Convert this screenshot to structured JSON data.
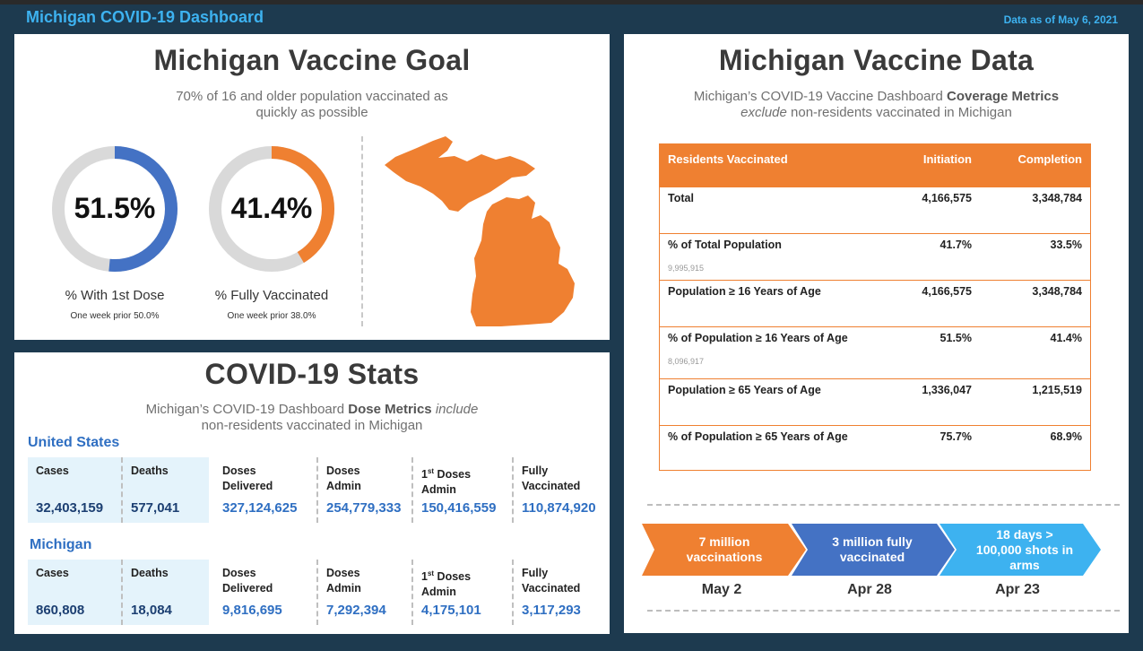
{
  "header": {
    "app_title": "Michigan COVID-19 Dashboard",
    "data_date": "Data as of May 6, 2021"
  },
  "goal": {
    "title": "Michigan Vaccine Goal",
    "subtitle_line1": "70% of 16 and older population vaccinated as",
    "subtitle_line2": "quickly as possible",
    "rings": [
      {
        "value": "51.5%",
        "fraction": 0.515,
        "color": "#4472c4",
        "label": "% With 1st Dose",
        "note": "One week prior 50.0%"
      },
      {
        "value": "41.4%",
        "fraction": 0.414,
        "color": "#ef8031",
        "label": "% Fully Vaccinated",
        "note": "One week prior 38.0%"
      }
    ],
    "map_icon": "michigan-map-icon",
    "map_color": "#ef8031"
  },
  "stats": {
    "title": "COVID-19 Stats",
    "subtitle_pre": "Michigan’s COVID-19 Dashboard ",
    "subtitle_bold": "Dose Metrics",
    "subtitle_italic": "include",
    "subtitle_line2": "non-residents vaccinated in Michigan",
    "us": {
      "label": "United States",
      "cells": [
        {
          "l1": "Cases",
          "l2": "",
          "sup": "",
          "value": "32,403,159"
        },
        {
          "l1": "Deaths",
          "l2": "",
          "sup": "",
          "value": "577,041"
        },
        {
          "l1": "Doses",
          "l2": "Delivered",
          "sup": "",
          "value": "327,124,625"
        },
        {
          "l1": "Doses",
          "l2": "Admin",
          "sup": "",
          "value": "254,779,333"
        },
        {
          "l1": "1",
          "sup": "st",
          "l1b": " Doses",
          "l2": "Admin",
          "value": "150,416,559"
        },
        {
          "l1": "Fully",
          "l2": "Vaccinated",
          "sup": "",
          "value": "110,874,920"
        }
      ]
    },
    "mi": {
      "label": "Michigan",
      "cells": [
        {
          "l1": "Cases",
          "l2": "",
          "sup": "",
          "value": "860,808"
        },
        {
          "l1": "Deaths",
          "l2": "",
          "sup": "",
          "value": "18,084"
        },
        {
          "l1": "Doses",
          "l2": "Delivered",
          "sup": "",
          "value": "9,816,695"
        },
        {
          "l1": "Doses",
          "l2": "Admin",
          "sup": "",
          "value": "7,292,394"
        },
        {
          "l1": "1",
          "sup": "st",
          "l1b": " Doses",
          "l2": "Admin",
          "value": "4,175,101"
        },
        {
          "l1": "Fully",
          "l2": "Vaccinated",
          "sup": "",
          "value": "3,117,293"
        }
      ]
    }
  },
  "vdata": {
    "title": "Michigan Vaccine Data",
    "subtitle_pre": "Michigan’s COVID-19 Vaccine Dashboard ",
    "subtitle_bold": "Coverage Metrics",
    "subtitle_italic": "exclude",
    "subtitle_post": " non-residents vaccinated in Michigan",
    "table": {
      "headers": [
        "Residents Vaccinated",
        "Initiation",
        "Completion"
      ],
      "rows": [
        {
          "label": "Total",
          "initiation": "4,166,575",
          "completion": "3,348,784",
          "sub": ""
        },
        {
          "label": "% of Total Population",
          "initiation": "41.7%",
          "completion": "33.5%",
          "sub": "9,995,915"
        },
        {
          "label": "Population ≥ 16 Years of Age",
          "initiation": "4,166,575",
          "completion": "3,348,784",
          "sub": ""
        },
        {
          "label": "% of Population ≥ 16 Years of Age",
          "initiation": "51.5%",
          "completion": "41.4%",
          "sub": "8,096,917"
        },
        {
          "label": "Population ≥ 65 Years of Age",
          "initiation": "1,336,047",
          "completion": "1,215,519",
          "sub": ""
        },
        {
          "label": "% of Population ≥ 65 Years of Age",
          "initiation": "75.7%",
          "completion": "68.9%",
          "sub": ""
        }
      ]
    },
    "milestones": [
      {
        "text_lines": [
          "7 million",
          "vaccinations"
        ],
        "date": "May 2",
        "color": "#ef8031"
      },
      {
        "text_lines": [
          "3 million fully",
          "vaccinated"
        ],
        "date": "Apr 28",
        "color": "#4472c4"
      },
      {
        "text_lines": [
          "18 days >",
          "100,000 shots in",
          "arms"
        ],
        "date": "Apr 23",
        "color": "#3db2f0"
      }
    ]
  }
}
